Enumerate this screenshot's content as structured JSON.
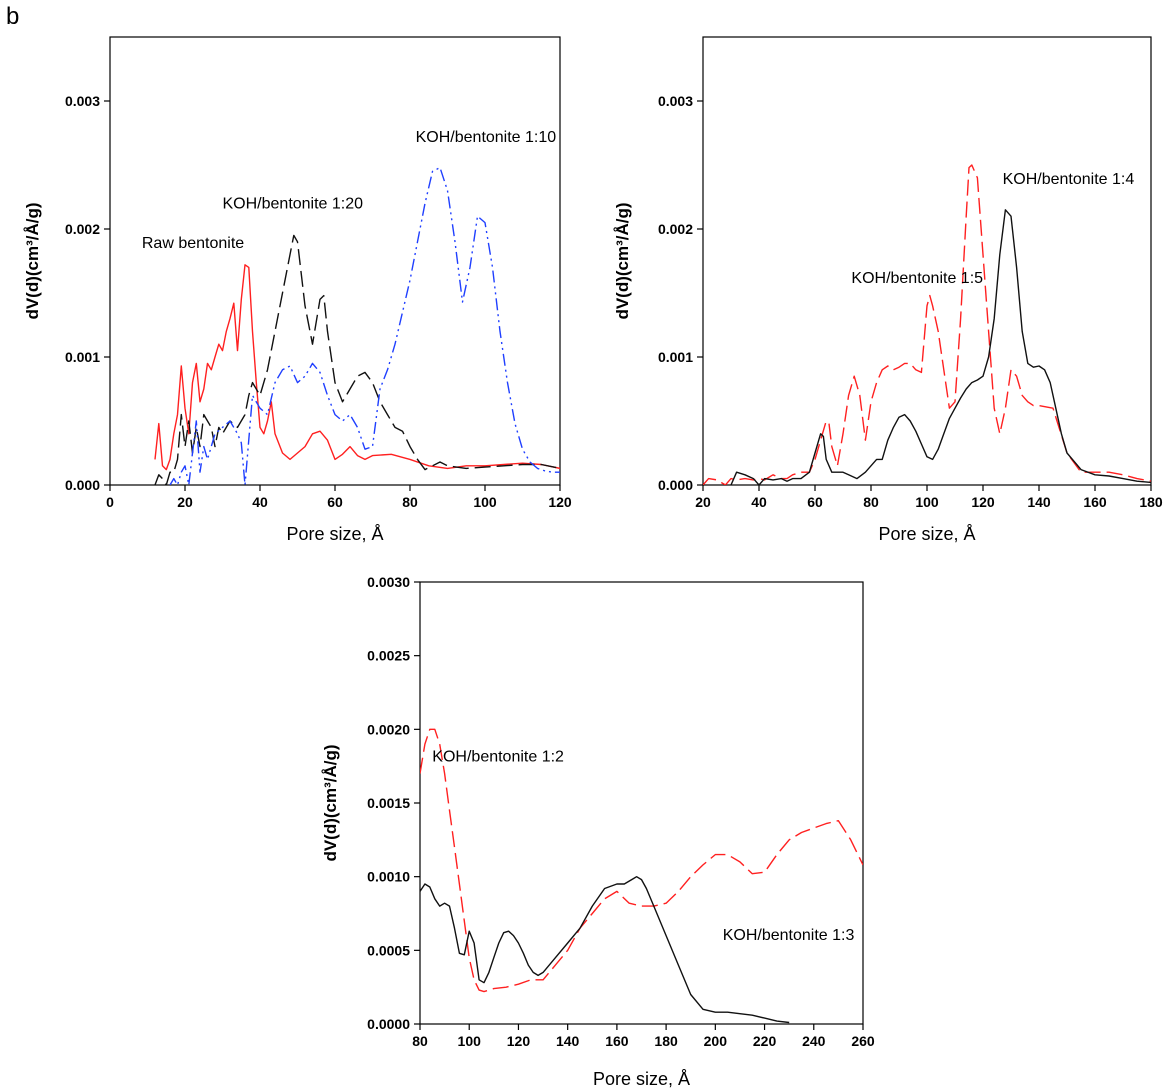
{
  "panel_letter": "b",
  "chart_data": [
    {
      "type": "line",
      "xlabel": "Pore size, Å",
      "ylabel": "dV(d)(cm³/Å/g)",
      "xlim": [
        0,
        120
      ],
      "ylim": [
        0,
        0.0035
      ],
      "xticks": [
        0,
        20,
        40,
        60,
        80,
        100,
        120
      ],
      "yticks": [
        0.0,
        0.001,
        0.002,
        0.003
      ],
      "ytick_labels": [
        "0.000",
        "0.001",
        "0.002",
        "0.003"
      ],
      "grid": false,
      "series": [
        {
          "name": "Raw bentonite",
          "color": "#ff2020",
          "dash": "solid",
          "label_anchor": [
            8.5,
            0.00185
          ],
          "x": [
            12,
            13,
            14,
            15,
            16,
            17,
            18,
            19,
            20,
            21,
            22,
            23,
            24,
            25,
            26,
            27,
            28,
            29,
            30,
            31,
            32,
            33,
            34,
            35,
            36,
            37,
            38,
            39,
            40,
            41,
            42,
            43,
            44,
            46,
            48,
            50,
            52,
            54,
            56,
            58,
            60,
            62,
            64,
            66,
            68,
            70,
            75,
            80,
            85,
            90,
            95,
            100,
            105,
            110,
            115,
            120
          ],
          "y": [
            0.0002,
            0.00048,
            0.00015,
            0.00012,
            0.0002,
            0.0004,
            0.00055,
            0.00093,
            0.0006,
            0.0004,
            0.0008,
            0.00095,
            0.00065,
            0.00075,
            0.00095,
            0.0009,
            0.001,
            0.0011,
            0.00105,
            0.0012,
            0.0013,
            0.00142,
            0.00105,
            0.00145,
            0.00172,
            0.0017,
            0.0012,
            0.0008,
            0.00045,
            0.0004,
            0.0005,
            0.00065,
            0.0004,
            0.00025,
            0.0002,
            0.00025,
            0.0003,
            0.0004,
            0.00042,
            0.00035,
            0.0002,
            0.00024,
            0.0003,
            0.00023,
            0.0002,
            0.00023,
            0.00024,
            0.0002,
            0.00015,
            0.00013,
            0.00015,
            0.00015,
            0.00016,
            0.00017,
            0.00016,
            0.00013
          ]
        },
        {
          "name": "KOH/bentonite 1:20",
          "color": "#111111",
          "dash": "long-dash",
          "label_anchor": [
            30,
            0.00216
          ],
          "x": [
            12,
            13,
            14,
            15,
            16,
            17,
            18,
            19,
            20,
            21,
            22,
            23,
            24,
            25,
            26,
            27,
            28,
            29,
            30,
            32,
            34,
            36,
            37,
            38,
            40,
            42,
            44,
            46,
            48,
            49,
            50,
            52,
            54,
            56,
            57,
            58,
            60,
            62,
            64,
            66,
            68,
            70,
            72,
            74,
            76,
            78,
            80,
            82,
            84,
            86,
            88,
            90,
            95,
            100,
            105,
            110,
            115,
            120
          ],
          "y": [
            0.0,
            8e-05,
            5e-05,
            0.0,
            0.0001,
            0.0001,
            0.0002,
            0.00055,
            0.0003,
            0.0005,
            0.00025,
            0.00045,
            0.0003,
            0.00055,
            0.0005,
            0.00045,
            0.0003,
            0.00045,
            0.0004,
            0.0005,
            0.00045,
            0.00055,
            0.0007,
            0.0008,
            0.0007,
            0.0009,
            0.0012,
            0.0015,
            0.0018,
            0.00195,
            0.0019,
            0.0014,
            0.0011,
            0.00145,
            0.00148,
            0.0012,
            0.0008,
            0.00065,
            0.00075,
            0.00085,
            0.00088,
            0.0008,
            0.00065,
            0.00055,
            0.00045,
            0.00042,
            0.0003,
            0.0002,
            0.00012,
            0.00015,
            0.00018,
            0.00015,
            0.00013,
            0.00014,
            0.00015,
            0.00016,
            0.00016,
            0.00013
          ]
        },
        {
          "name": "KOH/bentonite 1:10",
          "color": "#1f3fff",
          "dash": "dash-dot-dot",
          "label_anchor": [
            81.5,
            0.00268
          ],
          "x": [
            16,
            17,
            18,
            19,
            20,
            21,
            22,
            23,
            24,
            25,
            26,
            28,
            30,
            32,
            34,
            35,
            36,
            38,
            40,
            42,
            44,
            46,
            48,
            50,
            52,
            54,
            56,
            58,
            60,
            62,
            64,
            66,
            68,
            70,
            72,
            74,
            76,
            78,
            80,
            82,
            84,
            86,
            88,
            90,
            92,
            94,
            96,
            98,
            100,
            102,
            104,
            106,
            108,
            110,
            112,
            114,
            116,
            118,
            120
          ],
          "y": [
            0.0,
            5e-05,
            0.0,
            0.0001,
            0.00015,
            0.0,
            0.00025,
            0.0005,
            0.0001,
            0.0003,
            0.0002,
            0.0004,
            0.00045,
            0.0005,
            0.0004,
            0.00033,
            0.0,
            0.0007,
            0.0006,
            0.00055,
            0.0008,
            0.0009,
            0.00093,
            0.0008,
            0.00085,
            0.00095,
            0.00088,
            0.0007,
            0.00055,
            0.0005,
            0.00055,
            0.00045,
            0.00028,
            0.0003,
            0.00075,
            0.0009,
            0.0011,
            0.00135,
            0.0016,
            0.0019,
            0.0022,
            0.00245,
            0.00248,
            0.0023,
            0.0019,
            0.00143,
            0.0017,
            0.0021,
            0.00205,
            0.0017,
            0.0012,
            0.0008,
            0.00048,
            0.00028,
            0.00018,
            0.00013,
            0.00011,
            0.0001,
            0.0001
          ]
        }
      ]
    },
    {
      "type": "line",
      "xlabel": "Pore size, Å",
      "ylabel": "dV(d)(cm³/Å/g)",
      "xlim": [
        20,
        180
      ],
      "ylim": [
        0,
        0.0035
      ],
      "xticks": [
        20,
        40,
        60,
        80,
        100,
        120,
        140,
        160,
        180
      ],
      "yticks": [
        0.0,
        0.001,
        0.002,
        0.003
      ],
      "ytick_labels": [
        "0.000",
        "0.001",
        "0.002",
        "0.003"
      ],
      "grid": false,
      "series": [
        {
          "name": "KOH/bentonite 1:5",
          "color": "#ff2020",
          "dash": "long-dash",
          "label_anchor": [
            73,
            0.00158
          ],
          "x": [
            20,
            22,
            25,
            28,
            30,
            32,
            35,
            38,
            40,
            42,
            45,
            48,
            50,
            52,
            55,
            58,
            60,
            62,
            64,
            65,
            66,
            68,
            70,
            72,
            74,
            76,
            78,
            80,
            82,
            84,
            86,
            88,
            90,
            92,
            94,
            96,
            98,
            100,
            101,
            102,
            104,
            106,
            108,
            110,
            112,
            114,
            115,
            116,
            118,
            120,
            122,
            124,
            126,
            128,
            130,
            132,
            134,
            136,
            138,
            140,
            145,
            150,
            155,
            160,
            165,
            170,
            175,
            180
          ],
          "y": [
            0.0,
            5e-05,
            4e-05,
            0.0,
            5e-05,
            4e-05,
            5e-05,
            4e-05,
            5e-05,
            4e-05,
            8e-05,
            5e-05,
            5e-05,
            8e-05,
            0.0001,
            0.0001,
            0.0002,
            0.00035,
            0.0005,
            0.00048,
            0.0003,
            0.00015,
            0.0004,
            0.0007,
            0.00085,
            0.0007,
            0.00035,
            0.00065,
            0.0008,
            0.0009,
            0.00093,
            0.0009,
            0.00092,
            0.00095,
            0.00095,
            0.0009,
            0.00088,
            0.0014,
            0.00148,
            0.0014,
            0.0012,
            0.0009,
            0.0006,
            0.00065,
            0.0013,
            0.0021,
            0.00248,
            0.0025,
            0.0024,
            0.0018,
            0.0012,
            0.0006,
            0.0004,
            0.0006,
            0.0009,
            0.00085,
            0.0007,
            0.00065,
            0.00062,
            0.00062,
            0.0006,
            0.00025,
            0.0001,
            0.0001,
            0.0001,
            8e-05,
            5e-05,
            3e-05
          ]
        },
        {
          "name": "KOH/bentonite 1:4",
          "color": "#111111",
          "dash": "solid",
          "label_anchor": [
            127,
            0.00235
          ],
          "x": [
            30,
            32,
            35,
            38,
            40,
            42,
            45,
            48,
            50,
            52,
            55,
            58,
            60,
            62,
            63,
            64,
            66,
            68,
            70,
            72,
            75,
            78,
            80,
            82,
            84,
            86,
            88,
            90,
            92,
            94,
            96,
            98,
            100,
            102,
            104,
            106,
            108,
            110,
            112,
            114,
            116,
            118,
            120,
            122,
            124,
            126,
            128,
            130,
            132,
            134,
            136,
            138,
            140,
            142,
            144,
            146,
            148,
            150,
            155,
            160,
            165,
            170,
            175,
            180
          ],
          "y": [
            0.0,
            0.0001,
            8e-05,
            5e-05,
            0.0,
            5e-05,
            4e-05,
            5e-05,
            3e-05,
            5e-05,
            5e-05,
            0.0001,
            0.00025,
            0.0004,
            0.00038,
            0.0002,
            0.0001,
            0.0001,
            0.0001,
            8e-05,
            5e-05,
            0.0001,
            0.00015,
            0.0002,
            0.0002,
            0.00035,
            0.00045,
            0.00053,
            0.00055,
            0.0005,
            0.00042,
            0.00032,
            0.00022,
            0.0002,
            0.00028,
            0.0004,
            0.00052,
            0.0006,
            0.00068,
            0.00075,
            0.0008,
            0.00082,
            0.00085,
            0.001,
            0.0013,
            0.0018,
            0.00215,
            0.0021,
            0.0017,
            0.0012,
            0.00095,
            0.00092,
            0.00093,
            0.0009,
            0.0008,
            0.0006,
            0.0004,
            0.00025,
            0.00012,
            8e-05,
            7e-05,
            5e-05,
            3e-05,
            2e-05
          ]
        }
      ]
    },
    {
      "type": "line",
      "xlabel": "Pore size, Å",
      "ylabel": "dV(d)(cm³/Å/g)",
      "xlim": [
        80,
        260
      ],
      "ylim": [
        0,
        0.003
      ],
      "xticks": [
        80,
        100,
        120,
        140,
        160,
        180,
        200,
        220,
        240,
        260
      ],
      "yticks": [
        0.0,
        0.0005,
        0.001,
        0.0015,
        0.002,
        0.0025,
        0.003
      ],
      "ytick_labels": [
        "0.0000",
        "0.0005",
        "0.0010",
        "0.0015",
        "0.0020",
        "0.0025",
        "0.0030"
      ],
      "grid": false,
      "series": [
        {
          "name": "KOH/bentonite 1:2",
          "color": "#ff2020",
          "dash": "long-dash",
          "label_anchor": [
            85,
            0.00178
          ],
          "x": [
            80,
            82,
            84,
            86,
            88,
            90,
            92,
            94,
            96,
            98,
            100,
            102,
            104,
            106,
            108,
            110,
            115,
            120,
            125,
            130,
            135,
            140,
            145,
            150,
            155,
            160,
            165,
            170,
            175,
            180,
            185,
            190,
            195,
            200,
            205,
            210,
            215,
            220,
            225,
            230,
            235,
            240,
            245,
            250,
            255,
            260
          ],
          "y": [
            0.0017,
            0.0019,
            0.002,
            0.002,
            0.0019,
            0.0017,
            0.00145,
            0.0012,
            0.00095,
            0.0007,
            0.00045,
            0.0003,
            0.00023,
            0.00022,
            0.00023,
            0.00024,
            0.00025,
            0.00027,
            0.0003,
            0.0003,
            0.0004,
            0.0005,
            0.00065,
            0.00075,
            0.00085,
            0.0009,
            0.00082,
            0.0008,
            0.0008,
            0.00082,
            0.0009,
            0.001,
            0.00108,
            0.00115,
            0.00115,
            0.0011,
            0.00102,
            0.00103,
            0.00115,
            0.00125,
            0.0013,
            0.00133,
            0.00136,
            0.00138,
            0.00125,
            0.00108
          ]
        },
        {
          "name": "KOH/bentonite 1:3",
          "color": "#111111",
          "dash": "solid",
          "label_anchor": [
            203,
            0.00057
          ],
          "x": [
            80,
            82,
            84,
            86,
            88,
            90,
            92,
            94,
            96,
            98,
            100,
            102,
            104,
            106,
            108,
            110,
            112,
            114,
            116,
            118,
            120,
            122,
            124,
            126,
            128,
            130,
            135,
            140,
            145,
            150,
            155,
            160,
            163,
            166,
            168,
            170,
            172,
            175,
            180,
            185,
            190,
            195,
            200,
            205,
            210,
            215,
            220,
            225,
            230
          ],
          "y": [
            0.0009,
            0.00095,
            0.00093,
            0.00085,
            0.0008,
            0.00082,
            0.0008,
            0.00065,
            0.00048,
            0.00047,
            0.00063,
            0.00055,
            0.0003,
            0.00028,
            0.00035,
            0.00045,
            0.00055,
            0.00062,
            0.00063,
            0.0006,
            0.00055,
            0.00048,
            0.0004,
            0.00035,
            0.00033,
            0.00035,
            0.00045,
            0.00055,
            0.00065,
            0.0008,
            0.00092,
            0.00095,
            0.00095,
            0.00098,
            0.001,
            0.00098,
            0.00092,
            0.0008,
            0.0006,
            0.0004,
            0.0002,
            0.0001,
            8e-05,
            8e-05,
            7e-05,
            6e-05,
            4e-05,
            2e-05,
            1e-05
          ]
        }
      ]
    }
  ]
}
